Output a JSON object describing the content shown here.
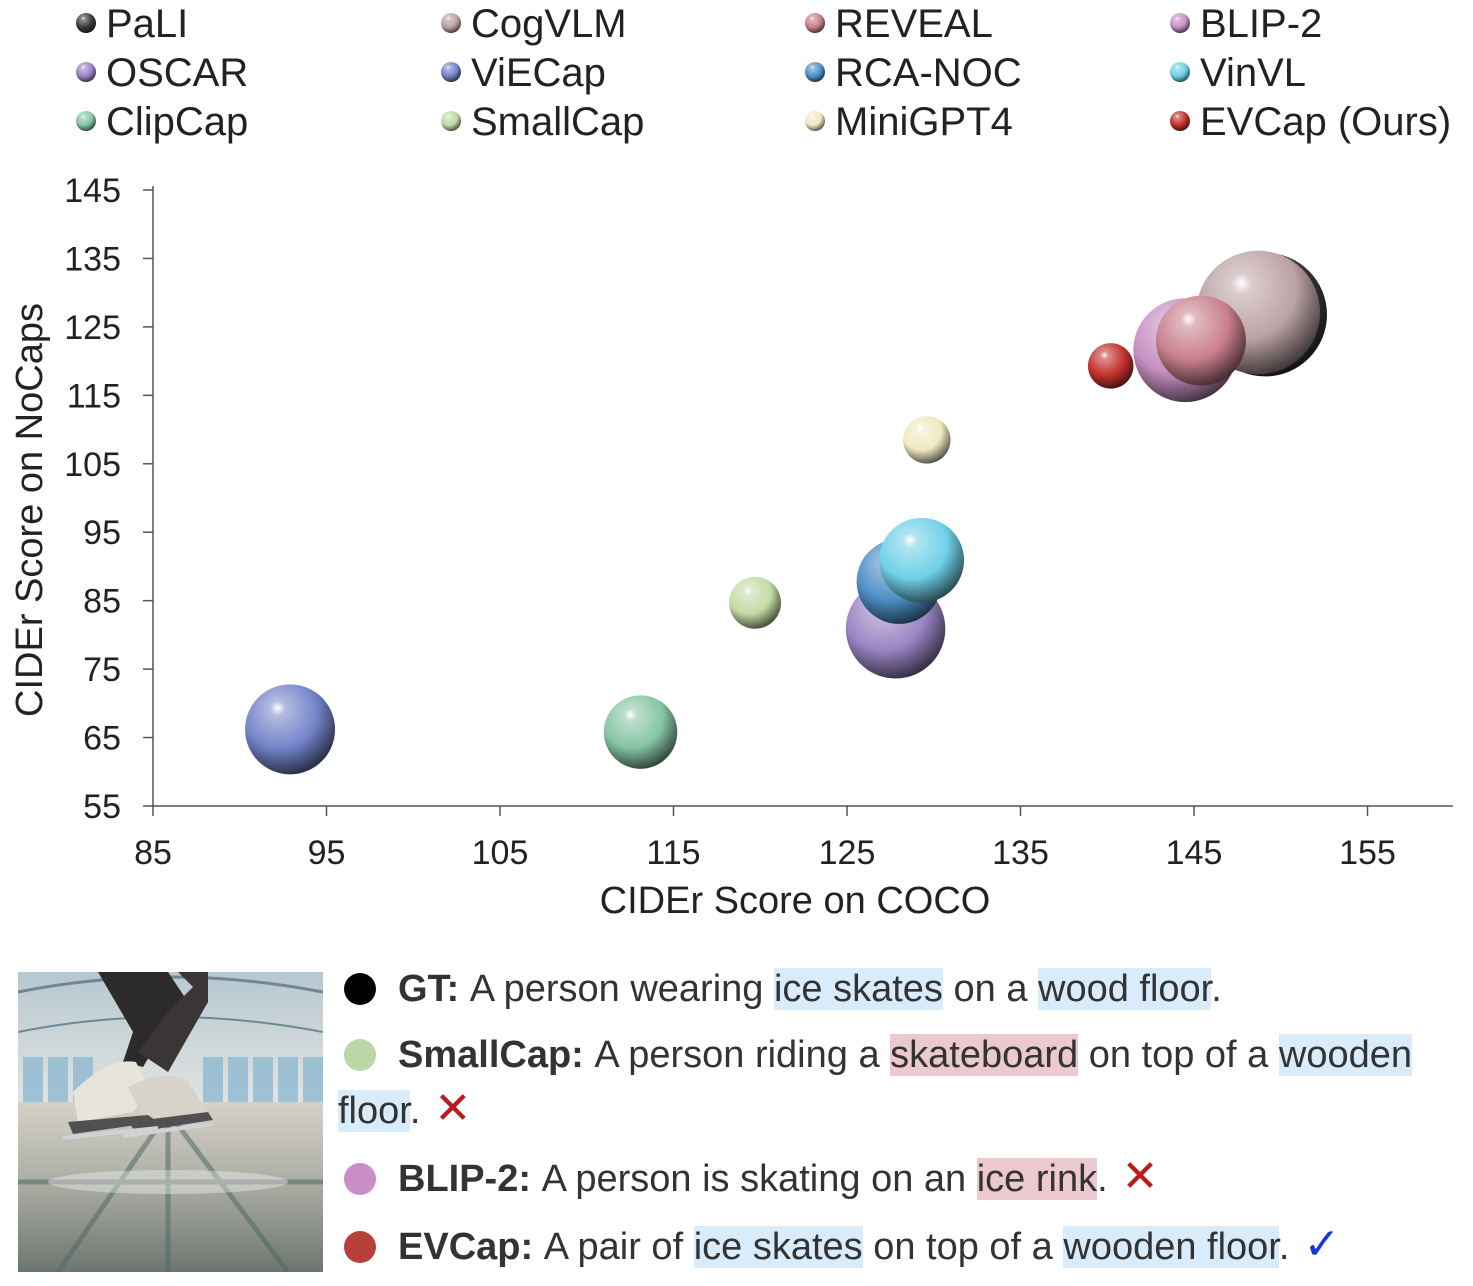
{
  "chart_data": {
    "type": "scatter",
    "xlabel": "CIDEr Score on COCO",
    "ylabel": "CIDEr Score on NoCaps",
    "xlim": [
      85,
      160
    ],
    "ylim": [
      55,
      145
    ],
    "xticks": [
      "85",
      "95",
      "105",
      "115",
      "125",
      "135",
      "145",
      "155"
    ],
    "yticks": [
      "55",
      "65",
      "75",
      "85",
      "95",
      "105",
      "115",
      "125",
      "135",
      "145"
    ],
    "grid": false,
    "legend_position": "top",
    "series": [
      {
        "name": "PaLI",
        "color": "#3a3a3a",
        "x": 149.1,
        "y": 126.8,
        "size": 17.0
      },
      {
        "name": "CogVLM",
        "color": "#bba2a6",
        "x": 148.7,
        "y": 127.1,
        "size": 17.0
      },
      {
        "name": "REVEAL",
        "color": "#c97f8c",
        "x": 145.4,
        "y": 123.0,
        "size": 9.0
      },
      {
        "name": "BLIP-2",
        "color": "#c68fc2",
        "x": 144.5,
        "y": 121.6,
        "size": 12.0
      },
      {
        "name": "OSCAR",
        "color": "#9b85c4",
        "x": 127.8,
        "y": 80.9,
        "size": 11.0
      },
      {
        "name": "ViECap",
        "color": "#7383c9",
        "x": 92.9,
        "y": 66.2,
        "size": 9.0
      },
      {
        "name": "RCA-NOC",
        "color": "#4d8fc6",
        "x": 128.0,
        "y": 87.8,
        "size": 8.0
      },
      {
        "name": "VinVL",
        "color": "#6fd0e8",
        "x": 129.3,
        "y": 90.9,
        "size": 8.0
      },
      {
        "name": "ClipCap",
        "color": "#86c4a4",
        "x": 113.1,
        "y": 65.8,
        "size": 6.0
      },
      {
        "name": "SmallCap",
        "color": "#c3dba4",
        "x": 119.7,
        "y": 84.7,
        "size": 3.0
      },
      {
        "name": "MiniGPT4",
        "color": "#efeac2",
        "x": 129.6,
        "y": 108.5,
        "size": 2.5
      },
      {
        "name": "EVCap (Ours)",
        "color": "#c2302c",
        "x": 140.2,
        "y": 119.3,
        "size": 2.3
      }
    ]
  },
  "example": {
    "captions": [
      {
        "dot_color": "#000000",
        "label": "GT:",
        "segments": [
          {
            "text": "A person wearing ",
            "hl": ""
          },
          {
            "text": "ice skates",
            "hl": "blue"
          },
          {
            "text": " on a ",
            "hl": ""
          },
          {
            "text": "wood floor",
            "hl": "blue"
          },
          {
            "text": ".",
            "hl": ""
          }
        ],
        "mark": ""
      },
      {
        "dot_color": "#bcd7a6",
        "label": "SmallCap:",
        "segments": [
          {
            "text": "A person riding a ",
            "hl": ""
          },
          {
            "text": "skateboard",
            "hl": "red"
          },
          {
            "text": " on top of a ",
            "hl": ""
          },
          {
            "text": "wooden floor",
            "hl": "blue"
          },
          {
            "text": ".",
            "hl": ""
          }
        ],
        "mark": "✕"
      },
      {
        "dot_color": "#c98ec6",
        "label": "BLIP-2:",
        "segments": [
          {
            "text": "A person is skating on an ",
            "hl": ""
          },
          {
            "text": "ice rink",
            "hl": "red"
          },
          {
            "text": ".",
            "hl": ""
          }
        ],
        "mark": "✕"
      },
      {
        "dot_color": "#b8403b",
        "label": "EVCap:",
        "segments": [
          {
            "text": "A pair of ",
            "hl": ""
          },
          {
            "text": "ice skates",
            "hl": "blue"
          },
          {
            "text": " on top of a ",
            "hl": ""
          },
          {
            "text": "wooden floor",
            "hl": "blue"
          },
          {
            "text": ".",
            "hl": ""
          }
        ],
        "mark": "✓"
      }
    ]
  }
}
